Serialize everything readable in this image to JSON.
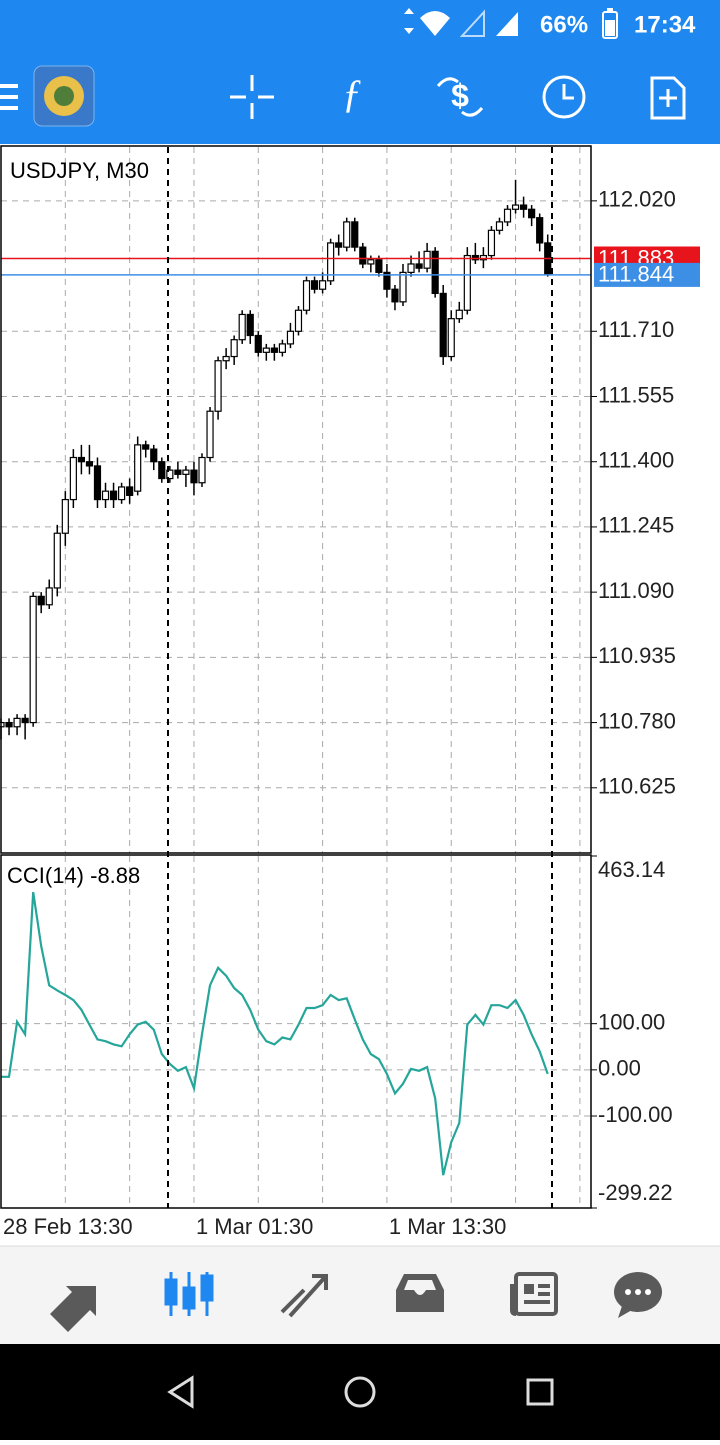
{
  "status_bar": {
    "battery": "66%",
    "time": "17:34"
  },
  "chart_data": [
    {
      "type": "candlestick",
      "title": "USDJPY, M30",
      "categories": [
        "28 Feb 13:30",
        null,
        null,
        null,
        null,
        null,
        null,
        null,
        null,
        null,
        null,
        null,
        null,
        null,
        null,
        null,
        null,
        null,
        null,
        null,
        null,
        null,
        null,
        null,
        "1 Mar 01:30",
        null,
        null,
        null,
        null,
        null,
        null,
        null,
        null,
        null,
        null,
        null,
        null,
        null,
        null,
        null,
        null,
        null,
        null,
        null,
        null,
        null,
        null,
        null,
        "1 Mar 13:30",
        null,
        null,
        null,
        null,
        null,
        null,
        null,
        null,
        null,
        null,
        null,
        null,
        null,
        null,
        null,
        null,
        null,
        null,
        null,
        null
      ],
      "open": [
        110.77,
        110.78,
        110.77,
        110.79,
        110.78,
        111.08,
        111.06,
        111.1,
        111.23,
        111.31,
        111.41,
        111.4,
        111.39,
        111.31,
        111.33,
        111.31,
        111.34,
        111.33,
        111.44,
        111.43,
        111.4,
        111.36,
        111.38,
        111.37,
        111.38,
        111.35,
        111.41,
        111.52,
        111.64,
        111.65,
        111.69,
        111.75,
        111.7,
        111.66,
        111.67,
        111.66,
        111.68,
        111.71,
        111.76,
        111.83,
        111.81,
        111.83,
        111.92,
        111.91,
        111.97,
        111.91,
        111.87,
        111.88,
        111.85,
        111.81,
        111.78,
        111.85,
        111.87,
        111.86,
        111.9,
        111.8,
        111.65,
        111.74,
        111.76,
        111.89,
        111.88,
        111.89,
        111.95,
        111.97,
        112.0,
        112.01,
        112.0,
        111.98,
        111.92
      ],
      "high": [
        110.79,
        110.79,
        110.8,
        110.8,
        111.09,
        111.09,
        111.12,
        111.25,
        111.33,
        111.43,
        111.44,
        111.44,
        111.41,
        111.35,
        111.35,
        111.35,
        111.36,
        111.46,
        111.45,
        111.44,
        111.41,
        111.39,
        111.4,
        111.39,
        111.4,
        111.42,
        111.53,
        111.65,
        111.67,
        111.7,
        111.76,
        111.76,
        111.71,
        111.68,
        111.68,
        111.69,
        111.73,
        111.77,
        111.84,
        111.84,
        111.85,
        111.93,
        111.94,
        111.98,
        111.98,
        111.92,
        111.89,
        111.89,
        111.87,
        111.82,
        111.87,
        111.89,
        111.9,
        111.92,
        111.91,
        111.82,
        111.76,
        111.78,
        111.91,
        111.92,
        111.91,
        111.96,
        111.98,
        112.01,
        112.07,
        112.03,
        112.01,
        111.99,
        111.94
      ],
      "low": [
        110.74,
        110.75,
        110.75,
        110.74,
        110.77,
        111.04,
        111.05,
        111.08,
        111.2,
        111.29,
        111.37,
        111.37,
        111.29,
        111.29,
        111.29,
        111.3,
        111.3,
        111.32,
        111.41,
        111.38,
        111.35,
        111.35,
        111.36,
        111.34,
        111.32,
        111.34,
        111.4,
        111.5,
        111.62,
        111.63,
        111.68,
        111.68,
        111.65,
        111.64,
        111.64,
        111.65,
        111.67,
        111.7,
        111.75,
        111.8,
        111.8,
        111.82,
        111.89,
        111.9,
        111.9,
        111.86,
        111.85,
        111.84,
        111.79,
        111.76,
        111.77,
        111.84,
        111.85,
        111.85,
        111.79,
        111.63,
        111.64,
        111.73,
        111.75,
        111.87,
        111.86,
        111.88,
        111.94,
        111.96,
        111.99,
        111.98,
        111.96,
        111.9,
        111.84
      ],
      "close": [
        110.78,
        110.77,
        110.79,
        110.78,
        111.08,
        111.06,
        111.1,
        111.23,
        111.31,
        111.41,
        111.4,
        111.39,
        111.31,
        111.33,
        111.31,
        111.34,
        111.32,
        111.44,
        111.43,
        111.4,
        111.36,
        111.38,
        111.37,
        111.38,
        111.35,
        111.41,
        111.52,
        111.64,
        111.65,
        111.69,
        111.75,
        111.7,
        111.66,
        111.67,
        111.66,
        111.68,
        111.71,
        111.76,
        111.83,
        111.81,
        111.83,
        111.92,
        111.91,
        111.97,
        111.91,
        111.87,
        111.88,
        111.85,
        111.81,
        111.78,
        111.85,
        111.87,
        111.86,
        111.9,
        111.8,
        111.65,
        111.74,
        111.76,
        111.89,
        111.88,
        111.89,
        111.95,
        111.97,
        112.0,
        112.01,
        112.0,
        111.98,
        111.92,
        111.844
      ],
      "up_color": "#ffffff",
      "down_color": "#000000",
      "ylim": [
        110.47,
        112.148
      ],
      "yticks": [
        {
          "value": 112.02,
          "label": "112.020"
        },
        {
          "value": 111.71,
          "label": "111.710"
        },
        111.555,
        {
          "value": 111.4,
          "label": "111.400"
        },
        111.245,
        {
          "value": 111.09,
          "label": "111.090"
        },
        110.935,
        {
          "value": 110.78,
          "label": "110.780"
        },
        110.625
      ],
      "grid": true,
      "price_lines": [
        {
          "value": 111.883,
          "color": "#e8141b"
        },
        {
          "value": 111.844,
          "color": "#3d8fe6"
        }
      ]
    },
    {
      "type": "line",
      "title": "CCI(14) -8.88",
      "color": "#26a69a",
      "values": [
        -15,
        -15,
        104,
        77,
        385,
        268,
        183,
        172,
        162,
        151,
        130,
        98,
        66,
        62,
        55,
        51,
        77,
        98,
        104,
        87,
        34,
        13,
        -2,
        6,
        -40,
        77,
        183,
        221,
        204,
        177,
        162,
        130,
        87,
        62,
        55,
        70,
        66,
        98,
        134,
        134,
        140,
        162,
        151,
        155,
        109,
        66,
        34,
        23,
        -9,
        -51,
        -30,
        2,
        -2,
        6,
        -62,
        -228,
        -157,
        -115,
        98,
        119,
        98,
        140,
        140,
        134,
        151,
        119,
        77,
        40,
        -8.88
      ],
      "ylim": [
        -299.22,
        463.14
      ],
      "yticks": [
        463.14,
        {
          "value": 100,
          "label": "100.00"
        },
        {
          "value": 0,
          "label": "0.00"
        },
        {
          "value": -100,
          "label": "-100.00"
        },
        -299.22
      ],
      "grid": true
    }
  ]
}
